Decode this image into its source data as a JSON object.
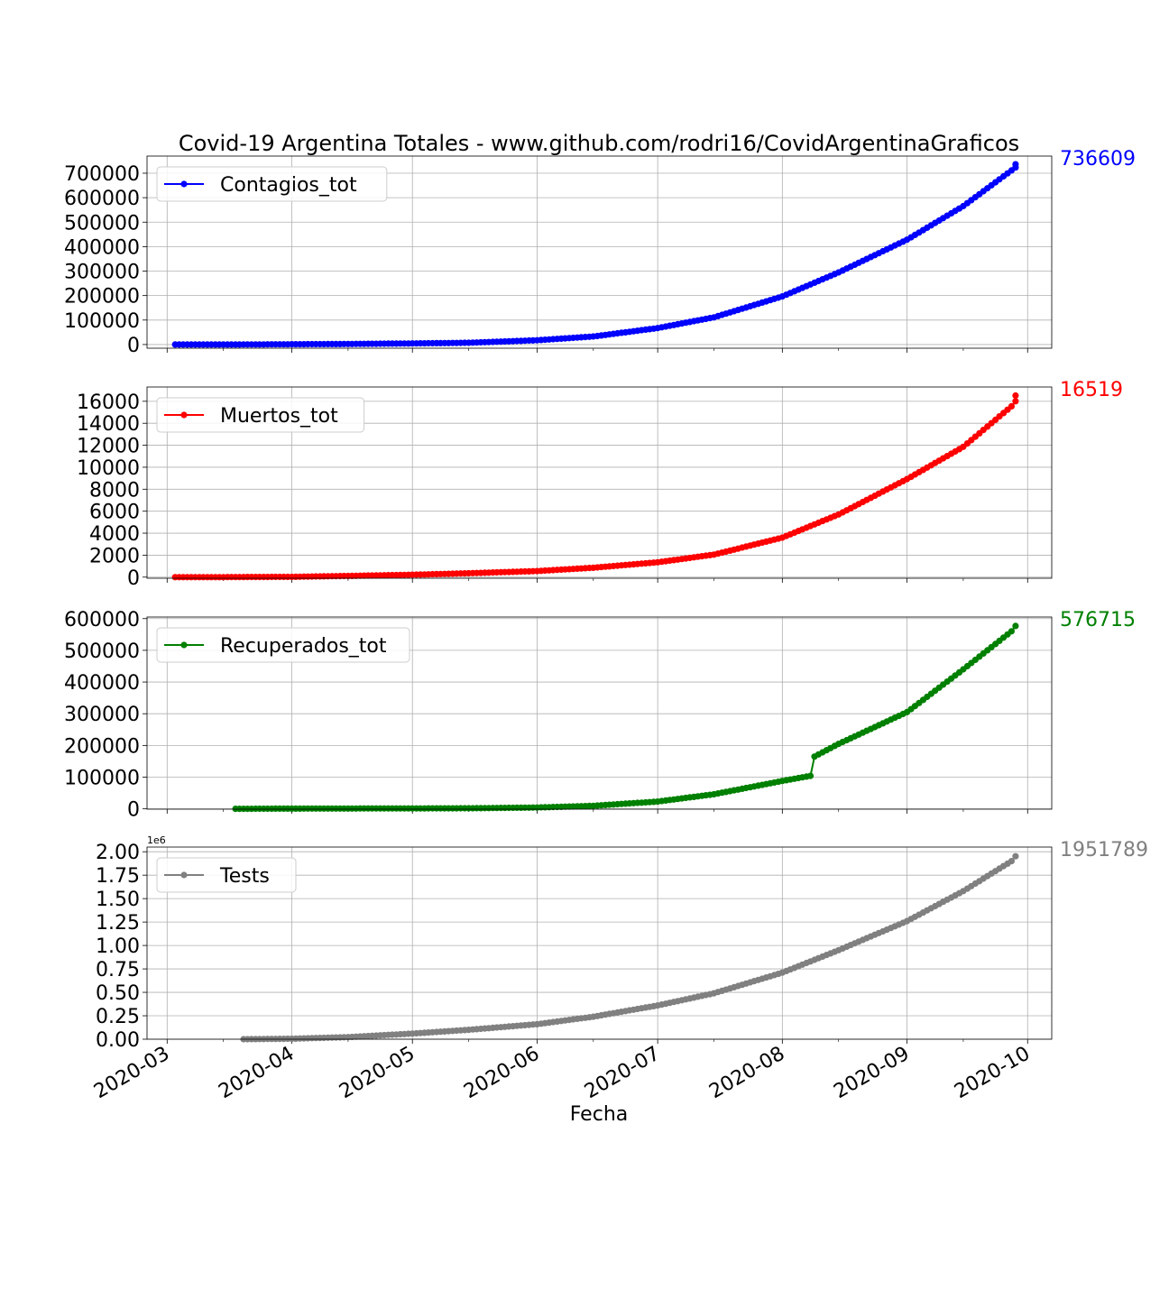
{
  "chart_data": {
    "type": "line",
    "title": "Covid-19 Argentina Totales - www.github.com/rodri16/CovidArgentinaGraficos",
    "xlabel": "Fecha",
    "x_range": [
      "2020-02-25",
      "2020-10-07"
    ],
    "x_ticks": [
      "2020-03",
      "2020-04",
      "2020-05",
      "2020-06",
      "2020-07",
      "2020-08",
      "2020-09",
      "2020-10"
    ],
    "x_tick_dates": [
      "2020-03-01",
      "2020-04-01",
      "2020-05-01",
      "2020-06-01",
      "2020-07-01",
      "2020-08-01",
      "2020-09-01",
      "2020-10-01"
    ],
    "grid": true,
    "legend_position": "top-left",
    "panels": [
      {
        "name": "Contagios_tot",
        "color": "#0000ff",
        "last_value_label": "736609",
        "ylim": [
          -15000,
          770000
        ],
        "y_ticks": [
          0,
          100000,
          200000,
          300000,
          400000,
          500000,
          600000,
          700000
        ],
        "y_tick_labels": [
          "0",
          "100000",
          "200000",
          "300000",
          "400000",
          "500000",
          "600000",
          "700000"
        ],
        "offset_label": "",
        "points": [
          [
            "2020-03-03",
            1
          ],
          [
            "2020-03-15",
            45
          ],
          [
            "2020-04-01",
            1054
          ],
          [
            "2020-04-15",
            2272
          ],
          [
            "2020-05-01",
            4428
          ],
          [
            "2020-05-15",
            7134
          ],
          [
            "2020-06-01",
            17415
          ],
          [
            "2020-06-15",
            32785
          ],
          [
            "2020-07-01",
            67197
          ],
          [
            "2020-07-15",
            111160
          ],
          [
            "2020-08-01",
            196543
          ],
          [
            "2020-08-15",
            294569
          ],
          [
            "2020-09-01",
            428239
          ],
          [
            "2020-09-15",
            565446
          ],
          [
            "2020-09-27",
            711325
          ],
          [
            "2020-09-28",
            723132
          ],
          [
            "2020-09-28",
            736609
          ]
        ]
      },
      {
        "name": "Muertos_tot",
        "color": "#ff0000",
        "last_value_label": "16519",
        "ylim": [
          -100,
          17300
        ],
        "y_ticks": [
          0,
          2000,
          4000,
          6000,
          8000,
          10000,
          12000,
          14000,
          16000
        ],
        "y_tick_labels": [
          "0",
          "2000",
          "4000",
          "6000",
          "8000",
          "10000",
          "12000",
          "14000",
          "16000"
        ],
        "offset_label": "",
        "points": [
          [
            "2020-03-03",
            0
          ],
          [
            "2020-03-15",
            2
          ],
          [
            "2020-04-01",
            27
          ],
          [
            "2020-04-15",
            109
          ],
          [
            "2020-05-01",
            218
          ],
          [
            "2020-05-15",
            353
          ],
          [
            "2020-06-01",
            551
          ],
          [
            "2020-06-15",
            854
          ],
          [
            "2020-07-01",
            1351
          ],
          [
            "2020-07-15",
            2050
          ],
          [
            "2020-08-01",
            3596
          ],
          [
            "2020-08-15",
            5703
          ],
          [
            "2020-09-01",
            8919
          ],
          [
            "2020-09-15",
            11855
          ],
          [
            "2020-09-27",
            15543
          ],
          [
            "2020-09-28",
            16000
          ],
          [
            "2020-09-28",
            16519
          ]
        ]
      },
      {
        "name": "Recuperados_tot",
        "color": "#008000",
        "last_value_label": "576715",
        "ylim": [
          -1000,
          605000
        ],
        "y_ticks": [
          0,
          100000,
          200000,
          300000,
          400000,
          500000,
          600000
        ],
        "y_tick_labels": [
          "0",
          "100000",
          "200000",
          "300000",
          "400000",
          "500000",
          "600000"
        ],
        "offset_label": "",
        "points": [
          [
            "2020-03-18",
            0
          ],
          [
            "2020-04-01",
            800
          ],
          [
            "2020-04-15",
            1100
          ],
          [
            "2020-05-01",
            1300
          ],
          [
            "2020-05-15",
            1800
          ],
          [
            "2020-06-01",
            4200
          ],
          [
            "2020-06-15",
            9500
          ],
          [
            "2020-07-01",
            23000
          ],
          [
            "2020-07-15",
            46000
          ],
          [
            "2020-08-01",
            88000
          ],
          [
            "2020-08-08",
            104000
          ],
          [
            "2020-08-09",
            165000
          ],
          [
            "2020-08-15",
            205000
          ],
          [
            "2020-09-01",
            305000
          ],
          [
            "2020-09-15",
            440000
          ],
          [
            "2020-09-27",
            560000
          ],
          [
            "2020-09-28",
            576715
          ]
        ]
      },
      {
        "name": "Tests",
        "color": "#808080",
        "last_value_label": "1951789",
        "ylim": [
          0,
          2050000
        ],
        "y_ticks": [
          0,
          250000,
          500000,
          750000,
          1000000,
          1250000,
          1500000,
          1750000,
          2000000
        ],
        "y_tick_labels": [
          "0.00",
          "0.25",
          "0.50",
          "0.75",
          "1.00",
          "1.25",
          "1.50",
          "1.75",
          "2.00"
        ],
        "offset_label": "1e6",
        "points": [
          [
            "2020-03-20",
            0
          ],
          [
            "2020-04-01",
            5000
          ],
          [
            "2020-04-15",
            22000
          ],
          [
            "2020-05-01",
            60000
          ],
          [
            "2020-05-15",
            100000
          ],
          [
            "2020-06-01",
            160000
          ],
          [
            "2020-06-15",
            240000
          ],
          [
            "2020-07-01",
            360000
          ],
          [
            "2020-07-15",
            490000
          ],
          [
            "2020-08-01",
            710000
          ],
          [
            "2020-08-15",
            950000
          ],
          [
            "2020-09-01",
            1260000
          ],
          [
            "2020-09-15",
            1580000
          ],
          [
            "2020-09-27",
            1900000
          ],
          [
            "2020-09-28",
            1951789
          ]
        ]
      }
    ]
  }
}
